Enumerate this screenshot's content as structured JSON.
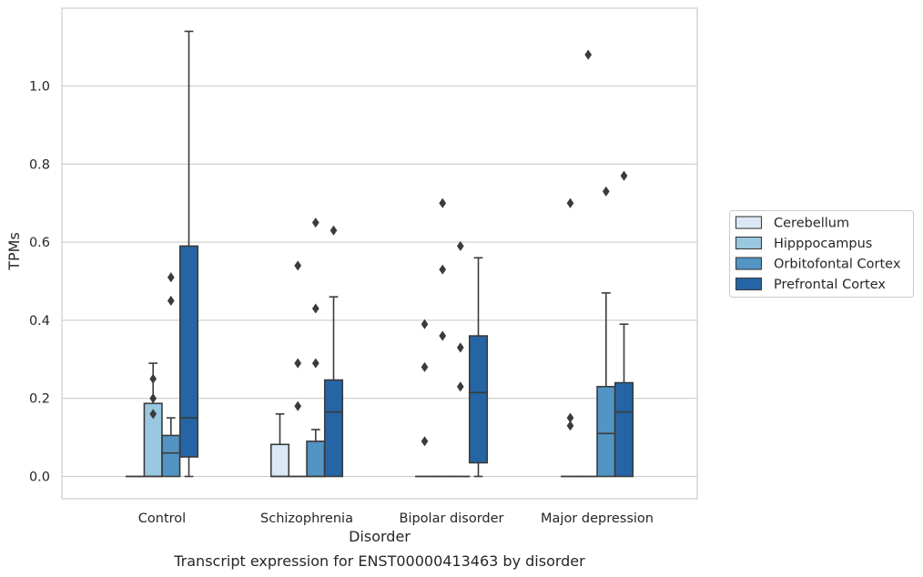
{
  "caption": "Transcript expression for ENST00000413463 by disorder",
  "chart_data": {
    "type": "box",
    "xlabel": "Disorder",
    "ylabel": "TPMs",
    "ylim": [
      -0.055,
      1.19
    ],
    "yticks": [
      0.0,
      0.2,
      0.4,
      0.6,
      0.8,
      1.0
    ],
    "ytick_labels": [
      "0.0",
      "0.2",
      "0.4",
      "0.6",
      "0.8",
      "1.0"
    ],
    "grid": "horizontal",
    "legend_position": "right",
    "categories": [
      "Control",
      "Schizophrenia",
      "Bipolar disorder",
      "Major depression"
    ],
    "series": [
      {
        "name": "Cerebellum",
        "color": "#dbe9f6",
        "boxes": [
          {
            "q1": 0,
            "median": 0,
            "q3": 0,
            "whisker_low": 0,
            "whisker_high": 0,
            "outliers": []
          },
          {
            "q1": 0,
            "median": 0,
            "q3": 0.082,
            "whisker_low": 0,
            "whisker_high": 0.16,
            "outliers": []
          },
          {
            "q1": 0,
            "median": 0,
            "q3": 0,
            "whisker_low": 0,
            "whisker_high": 0,
            "outliers": [
              0.39,
              0.28,
              0.09
            ]
          },
          {
            "q1": 0,
            "median": 0,
            "q3": 0,
            "whisker_low": 0,
            "whisker_high": 0,
            "outliers": [
              0.7,
              0.15,
              0.13
            ]
          }
        ]
      },
      {
        "name": "Hipppocampus",
        "color": "#9ac8e0",
        "boxes": [
          {
            "q1": 0,
            "median": 0,
            "q3": 0.187,
            "whisker_low": 0,
            "whisker_high": 0.29,
            "outliers": [
              0.25,
              0.2,
              0.16
            ]
          },
          {
            "q1": 0,
            "median": 0,
            "q3": 0,
            "whisker_low": 0,
            "whisker_high": 0,
            "outliers": [
              0.54,
              0.29,
              0.18
            ]
          },
          {
            "q1": 0,
            "median": 0,
            "q3": 0,
            "whisker_low": 0,
            "whisker_high": 0,
            "outliers": [
              0.7,
              0.53,
              0.36
            ]
          },
          {
            "q1": 0,
            "median": 0,
            "q3": 0,
            "whisker_low": 0,
            "whisker_high": 0,
            "outliers": [
              1.08
            ]
          }
        ]
      },
      {
        "name": "Orbitofontal Cortex",
        "color": "#5294c3",
        "boxes": [
          {
            "q1": 0,
            "median": 0.06,
            "q3": 0.105,
            "whisker_low": 0,
            "whisker_high": 0.15,
            "outliers": [
              0.51,
              0.45
            ]
          },
          {
            "q1": 0,
            "median": 0,
            "q3": 0.09,
            "whisker_low": 0,
            "whisker_high": 0.12,
            "outliers": [
              0.65,
              0.43,
              0.29
            ]
          },
          {
            "q1": 0,
            "median": 0,
            "q3": 0,
            "whisker_low": 0,
            "whisker_high": 0,
            "outliers": [
              0.59,
              0.33,
              0.23
            ]
          },
          {
            "q1": 0,
            "median": 0.11,
            "q3": 0.23,
            "whisker_low": 0,
            "whisker_high": 0.47,
            "outliers": [
              0.73
            ]
          }
        ]
      },
      {
        "name": "Prefrontal Cortex",
        "color": "#2565a5",
        "boxes": [
          {
            "q1": 0.05,
            "median": 0.15,
            "q3": 0.59,
            "whisker_low": 0,
            "whisker_high": 1.14,
            "outliers": []
          },
          {
            "q1": 0,
            "median": 0.165,
            "q3": 0.247,
            "whisker_low": 0,
            "whisker_high": 0.46,
            "outliers": [
              0.63
            ]
          },
          {
            "q1": 0.035,
            "median": 0.215,
            "q3": 0.36,
            "whisker_low": 0,
            "whisker_high": 0.56,
            "outliers": []
          },
          {
            "q1": 0,
            "median": 0.165,
            "q3": 0.24,
            "whisker_low": 0,
            "whisker_high": 0.39,
            "outliers": [
              0.77
            ]
          }
        ]
      }
    ]
  }
}
